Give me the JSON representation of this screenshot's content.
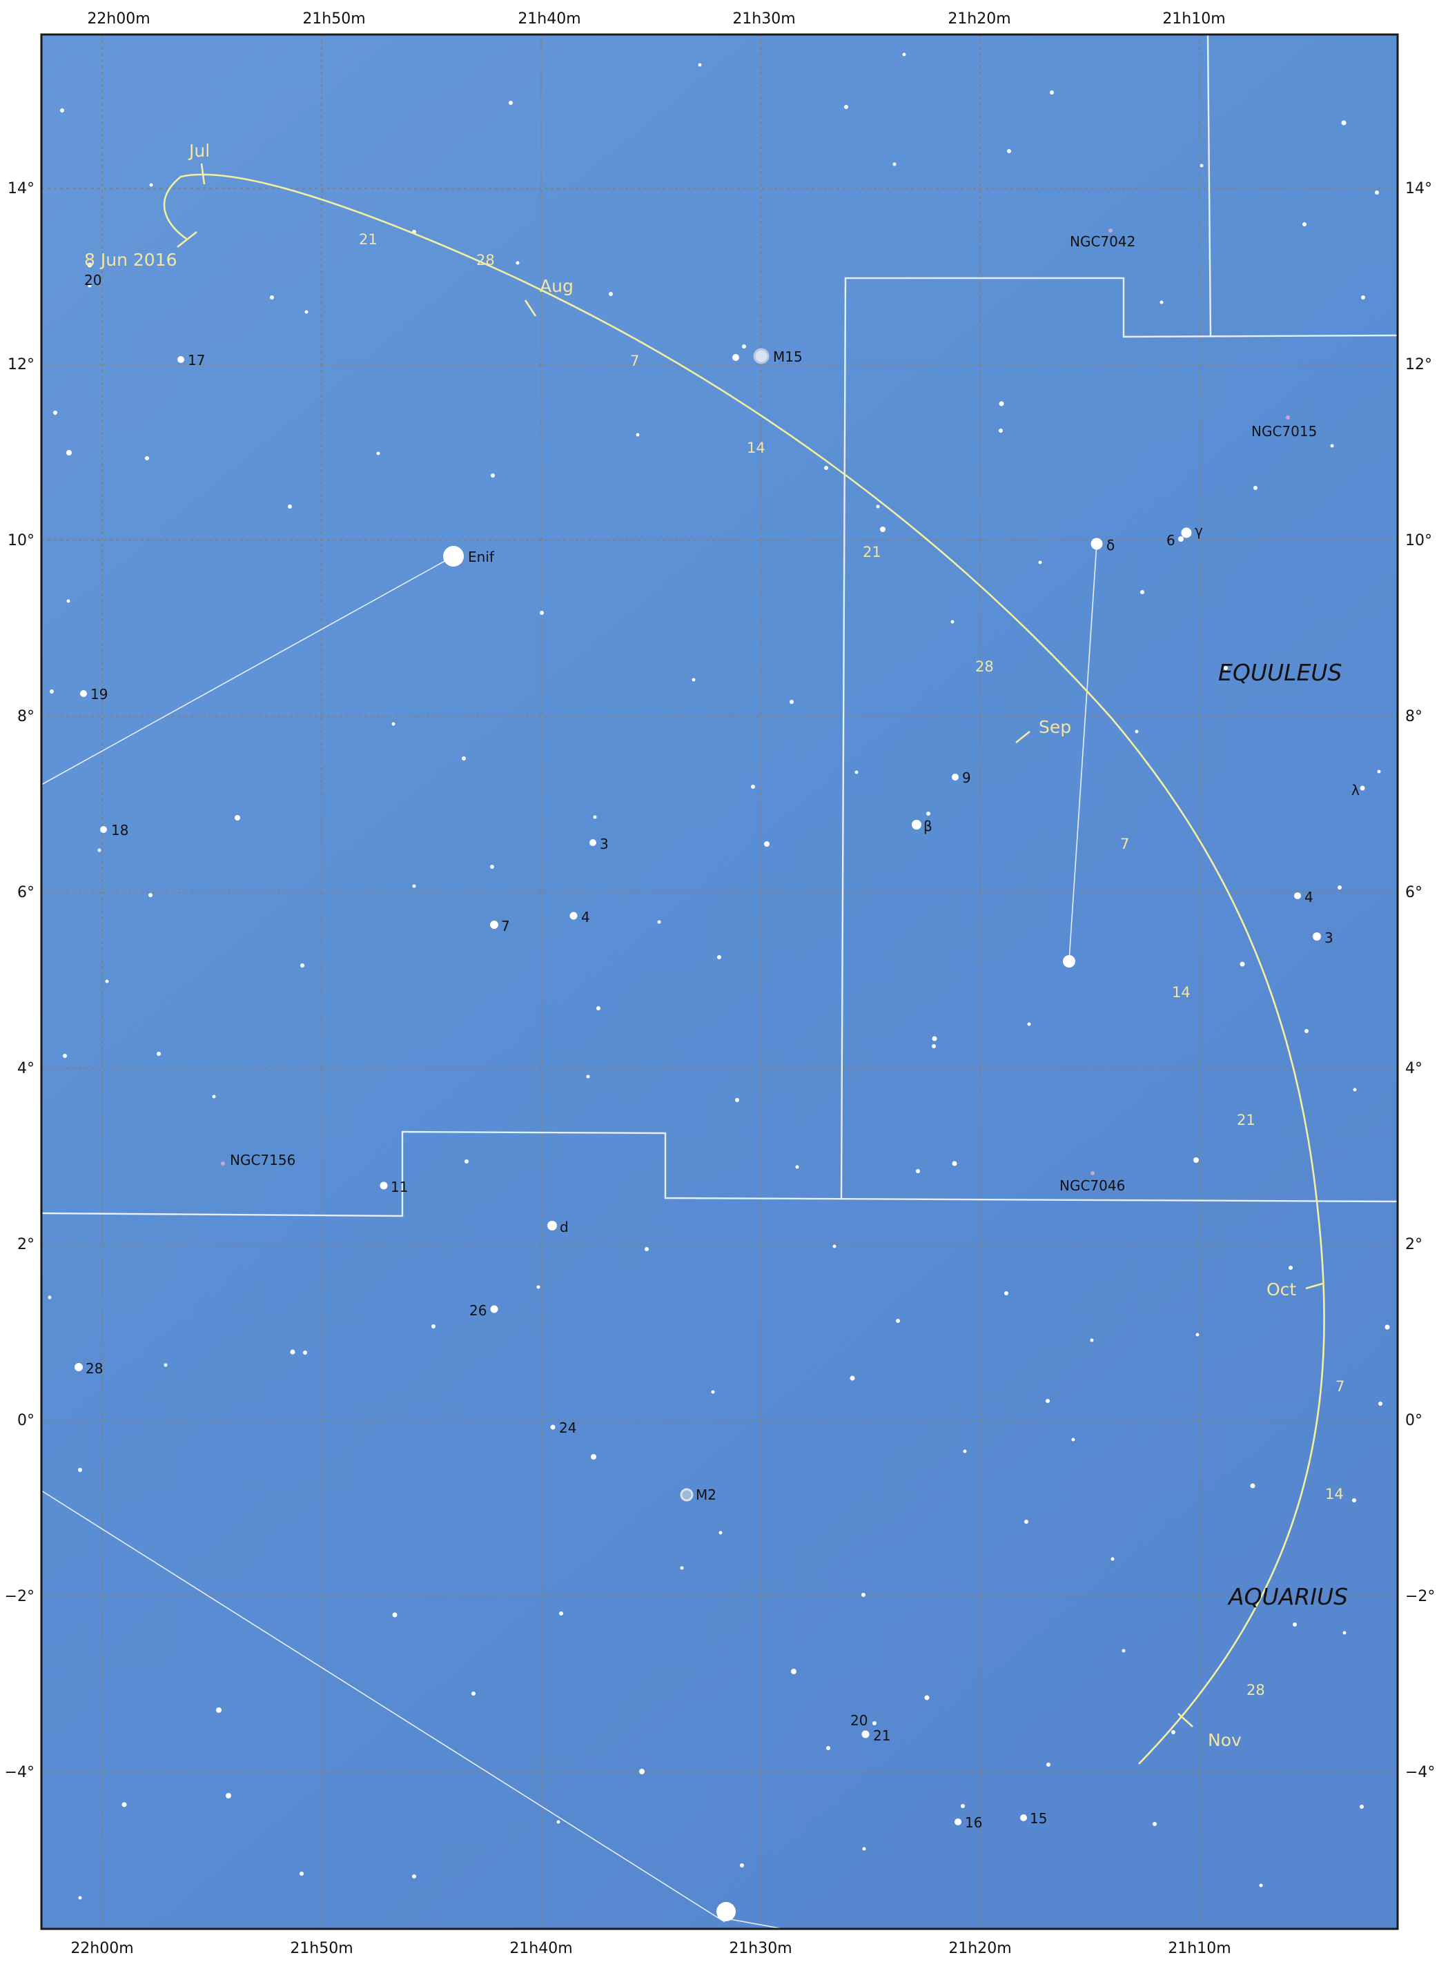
{
  "map": {
    "ra_ticks": [
      "22h00m",
      "21h50m",
      "21h40m",
      "21h30m",
      "21h20m",
      "21h10m"
    ],
    "dec_ticks": [
      "14°",
      "12°",
      "10°",
      "8°",
      "6°",
      "4°",
      "2°",
      "0°",
      "−2°",
      "−4°"
    ],
    "constellations": [
      "EQUULEUS",
      "AQUARIUS"
    ],
    "colors": {
      "sky": "#5a8fd3",
      "grid": "#8a7f6a",
      "boundary": "#e6eef8",
      "path": "#f2f0a0",
      "path_label": "#f3e6a4"
    }
  },
  "comet_path": {
    "start_label": "8 Jun 2016",
    "months": [
      "Jul",
      "Aug",
      "Sep",
      "Oct",
      "Nov"
    ],
    "day_labels": [
      "21",
      "28",
      "7",
      "14",
      "21",
      "28",
      "7",
      "14",
      "21",
      "7",
      "14",
      "28"
    ]
  },
  "labels": {
    "deep_sky": [
      "M15",
      "M2",
      "NGC7042",
      "NGC7015",
      "NGC7046",
      "NGC7156"
    ],
    "named_stars": [
      "Enif",
      "δ",
      "γ",
      "6",
      "β",
      "λ",
      "d"
    ],
    "numbered_stars": [
      "20",
      "17",
      "19",
      "18",
      "9",
      "3",
      "7",
      "4",
      "4",
      "3",
      "11",
      "26",
      "28",
      "24",
      "20",
      "21",
      "16",
      "15"
    ]
  }
}
